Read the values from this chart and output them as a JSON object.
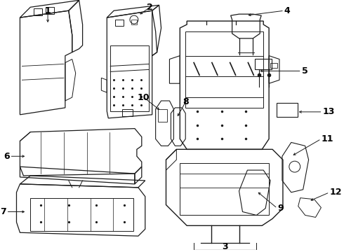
{
  "background_color": "#ffffff",
  "fig_width": 4.9,
  "fig_height": 3.6,
  "dpi": 100,
  "line_color": "#1a1a1a",
  "text_color": "#000000",
  "font_size": 8.5
}
